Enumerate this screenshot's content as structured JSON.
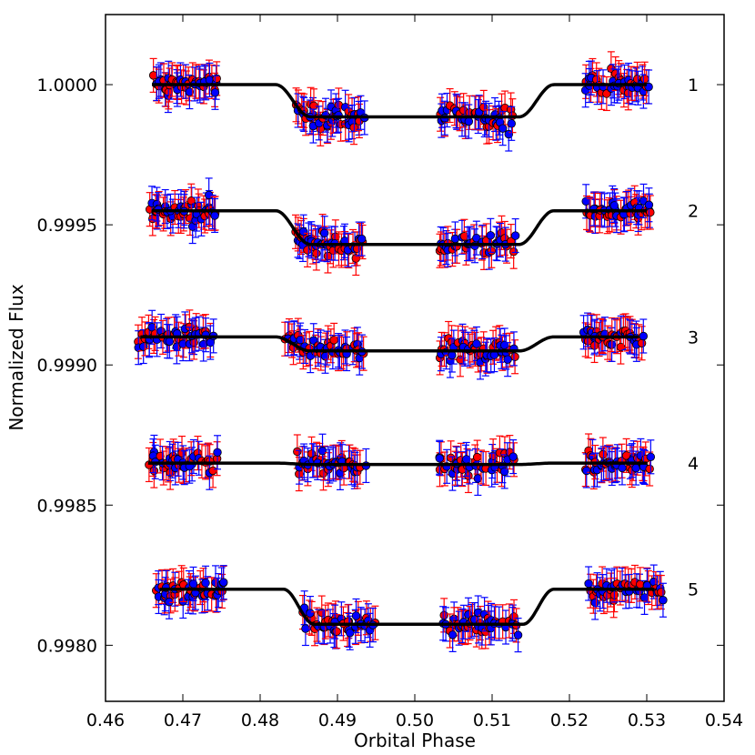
{
  "chart_data": {
    "type": "scatter",
    "title": "",
    "xlabel": "Orbital Phase",
    "ylabel": "Normalized Flux",
    "xlim": [
      0.46,
      0.54
    ],
    "ylim": [
      0.9978,
      1.00025
    ],
    "x_ticks": [
      0.46,
      0.47,
      0.48,
      0.49,
      0.5,
      0.51,
      0.52,
      0.53,
      0.54
    ],
    "x_tick_labels": [
      "0.46",
      "0.47",
      "0.48",
      "0.49",
      "0.50",
      "0.51",
      "0.52",
      "0.53",
      "0.54"
    ],
    "y_ticks": [
      0.998,
      0.9985,
      0.999,
      0.9995,
      1.0
    ],
    "y_tick_labels": [
      "0.9980",
      "0.9985",
      "0.9990",
      "0.9995",
      "1.0000"
    ],
    "grid": false,
    "legend": "none",
    "point_series_colors": {
      "blue": "#0000ff",
      "red": "#ff0000",
      "model": "#000000"
    },
    "point_error_bar": 6e-05,
    "curves": [
      {
        "label": "1",
        "baseline": 1.0,
        "depth": 0.000115,
        "ingress": [
          0.482,
          0.4865
        ],
        "egress": [
          0.5135,
          0.518
        ],
        "phase_range": [
          0.466,
          0.53
        ],
        "segments": [
          [
            0.466,
            0.4745
          ],
          [
            0.4845,
            0.4935
          ],
          [
            0.503,
            0.513
          ],
          [
            0.522,
            0.5305
          ]
        ]
      },
      {
        "label": "2",
        "baseline": 0.99955,
        "depth": 0.00012,
        "ingress": [
          0.482,
          0.4865
        ],
        "egress": [
          0.5135,
          0.518
        ],
        "phase_range": [
          0.466,
          0.53
        ],
        "segments": [
          [
            0.4655,
            0.4745
          ],
          [
            0.4845,
            0.4935
          ],
          [
            0.503,
            0.513
          ],
          [
            0.522,
            0.5305
          ]
        ]
      },
      {
        "label": "3",
        "baseline": 0.9991,
        "depth": 5e-05,
        "ingress": [
          0.482,
          0.4865
        ],
        "egress": [
          0.5135,
          0.518
        ],
        "phase_range": [
          0.4645,
          0.529
        ],
        "segments": [
          [
            0.464,
            0.474
          ],
          [
            0.483,
            0.4935
          ],
          [
            0.503,
            0.513
          ],
          [
            0.522,
            0.5295
          ]
        ]
      },
      {
        "label": "4",
        "baseline": 0.99865,
        "depth": 5e-06,
        "ingress": [
          0.482,
          0.4865
        ],
        "egress": [
          0.5135,
          0.518
        ],
        "phase_range": [
          0.4655,
          0.53
        ],
        "segments": [
          [
            0.4655,
            0.4745
          ],
          [
            0.4845,
            0.4935
          ],
          [
            0.503,
            0.513
          ],
          [
            0.522,
            0.5305
          ]
        ]
      },
      {
        "label": "5",
        "baseline": 0.9982,
        "depth": 0.000125,
        "ingress": [
          0.483,
          0.487
        ],
        "egress": [
          0.514,
          0.518
        ],
        "phase_range": [
          0.467,
          0.531
        ],
        "segments": [
          [
            0.4665,
            0.4755
          ],
          [
            0.4855,
            0.495
          ],
          [
            0.5035,
            0.5135
          ],
          [
            0.5225,
            0.532
          ]
        ]
      }
    ]
  }
}
